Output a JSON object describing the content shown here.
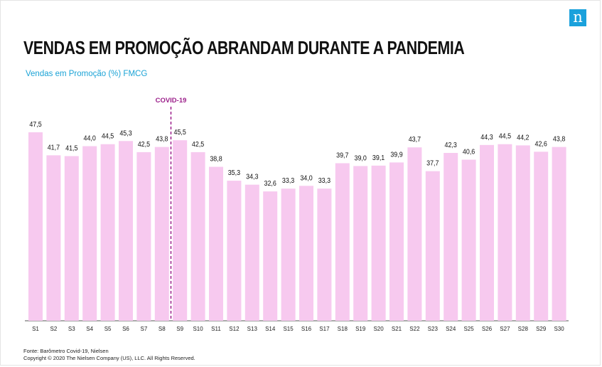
{
  "brand": {
    "logo_glyph": "n",
    "logo_color": "#1aa1dc"
  },
  "header": {
    "title": "VENDAS EM PROMOÇÃO ABRANDAM DURANTE A PANDEMIA",
    "subtitle": "Vendas em Promoção (%) FMCG"
  },
  "footer": {
    "source": "Fonte: Barômetro Covid-19, Nielsen",
    "copyright": "Copyright © 2020 The Nielsen Company (US), LLC. All Rights Reserved."
  },
  "chart_data": {
    "type": "bar",
    "categories": [
      "S1",
      "S2",
      "S3",
      "S4",
      "S5",
      "S6",
      "S7",
      "S8",
      "S9",
      "S10",
      "S11",
      "S12",
      "S13",
      "S14",
      "S15",
      "S16",
      "S17",
      "S18",
      "S19",
      "S20",
      "S21",
      "S22",
      "S23",
      "S24",
      "S25",
      "S26",
      "S27",
      "S28",
      "S29",
      "S30"
    ],
    "values": [
      47.5,
      41.7,
      41.5,
      44.0,
      44.5,
      45.3,
      42.5,
      43.8,
      45.5,
      42.5,
      38.8,
      35.3,
      34.3,
      32.6,
      33.3,
      34.0,
      33.3,
      39.7,
      39.0,
      39.1,
      39.9,
      43.7,
      37.7,
      42.3,
      40.6,
      44.3,
      44.5,
      44.2,
      42.6,
      43.8
    ],
    "value_labels": [
      "47,5",
      "41,7",
      "41,5",
      "44,0",
      "44,5",
      "45,3",
      "42,5",
      "43,8",
      "45,5",
      "42,5",
      "38,8",
      "35,3",
      "34,3",
      "32,6",
      "33,3",
      "34,0",
      "33,3",
      "39,7",
      "39,0",
      "39,1",
      "39,9",
      "43,7",
      "37,7",
      "42,3",
      "40,6",
      "44,3",
      "44,5",
      "44,2",
      "42,6",
      "43,8"
    ],
    "ylim": [
      0,
      48
    ],
    "grid": false,
    "bar_color": "#f7c9ef",
    "annotation": {
      "label": "COVID-19",
      "between": [
        "S8",
        "S9"
      ],
      "color": "#9b1f8a"
    }
  }
}
